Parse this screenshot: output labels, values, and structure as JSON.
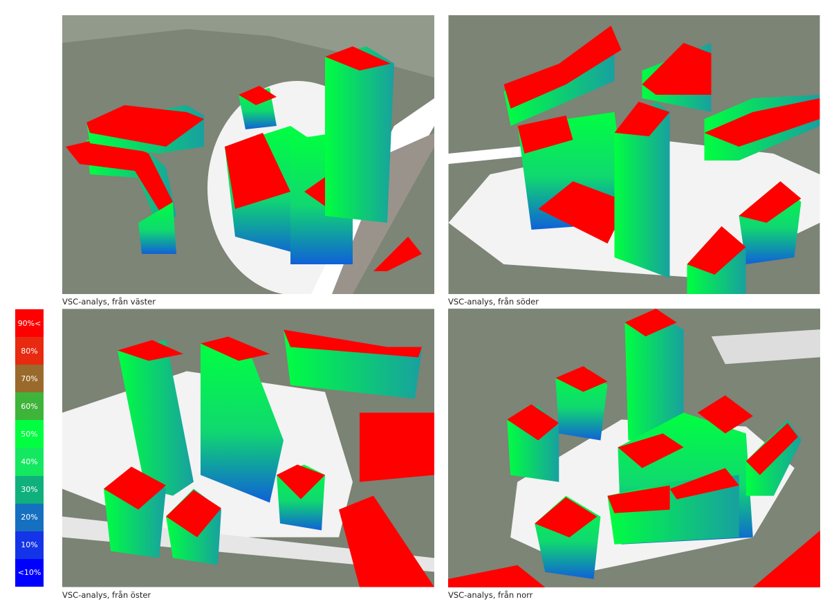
{
  "legend": {
    "items": [
      {
        "label": "90%<",
        "color": "#ff0000"
      },
      {
        "label": "80%",
        "color": "#e82a10"
      },
      {
        "label": "70%",
        "color": "#9a6a2c"
      },
      {
        "label": "60%",
        "color": "#3fb43a"
      },
      {
        "label": "50%",
        "color": "#00ff40"
      },
      {
        "label": "40%",
        "color": "#14e860"
      },
      {
        "label": "30%",
        "color": "#10b07c"
      },
      {
        "label": "20%",
        "color": "#1670c0"
      },
      {
        "label": "10%",
        "color": "#1434e8"
      },
      {
        "label": "<10%",
        "color": "#0000ff"
      }
    ]
  },
  "panels": [
    {
      "caption": "VSC-analys, från väster"
    },
    {
      "caption": "VSC-analys, från söder"
    },
    {
      "caption": "VSC-analys, från öster"
    },
    {
      "caption": "VSC-analys, från norr"
    }
  ]
}
